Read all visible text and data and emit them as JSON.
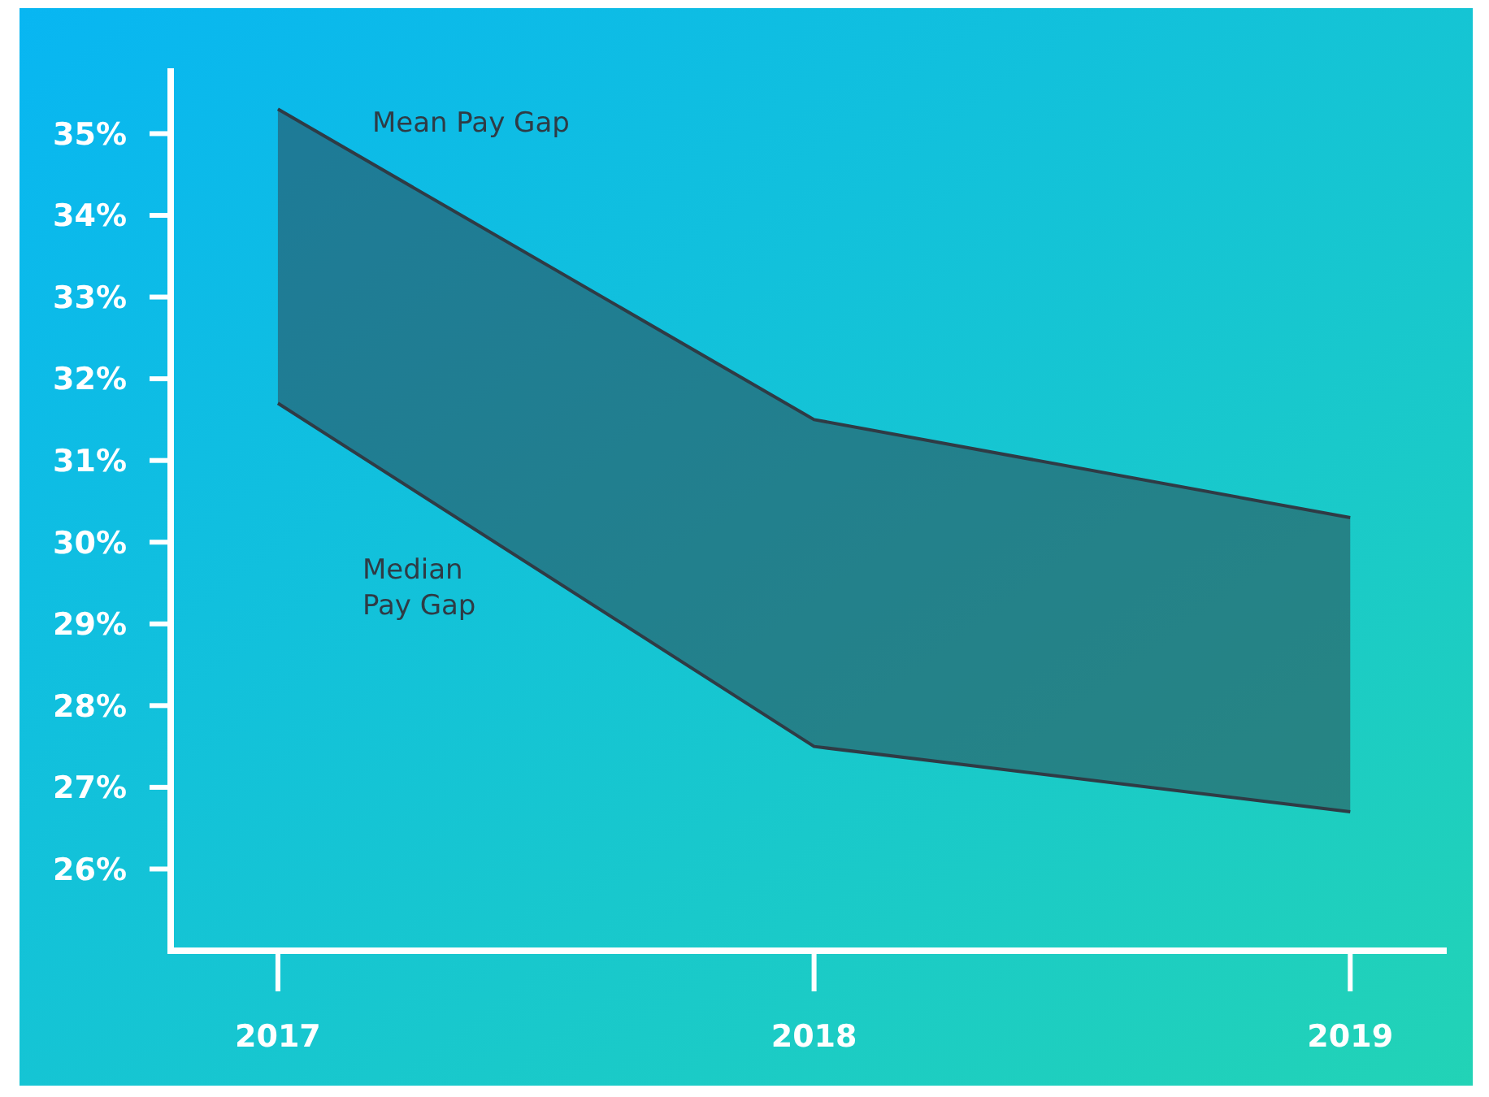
{
  "chart_data": {
    "type": "line",
    "x": [
      2017,
      2018,
      2019
    ],
    "xlim": [
      2016.8,
      2019.18
    ],
    "xticks": [
      2017,
      2018,
      2019
    ],
    "ylim": [
      25,
      35.8
    ],
    "yticks": [
      {
        "value": 26,
        "label": "26%"
      },
      {
        "value": 27,
        "label": "27%"
      },
      {
        "value": 28,
        "label": "28%"
      },
      {
        "value": 29,
        "label": "29%"
      },
      {
        "value": 30,
        "label": "30%"
      },
      {
        "value": 31,
        "label": "31%"
      },
      {
        "value": 32,
        "label": "32%"
      },
      {
        "value": 33,
        "label": "33%"
      },
      {
        "value": 34,
        "label": "34%"
      },
      {
        "value": 35,
        "label": "35%"
      }
    ],
    "grid": false,
    "marker": "none",
    "line_style": "solid",
    "series": [
      {
        "name": "Mean Pay Gap",
        "color": "#2f3b45",
        "values": [
          35.3,
          31.5,
          30.3
        ],
        "lower": [
          31.7,
          27.5,
          26.7
        ],
        "upper": [
          35.3,
          31.5,
          30.3
        ]
      },
      {
        "name": "Median Pay Gap",
        "color": "#2f3b45",
        "values": [
          31.7,
          27.5,
          26.7
        ]
      }
    ]
  }
}
